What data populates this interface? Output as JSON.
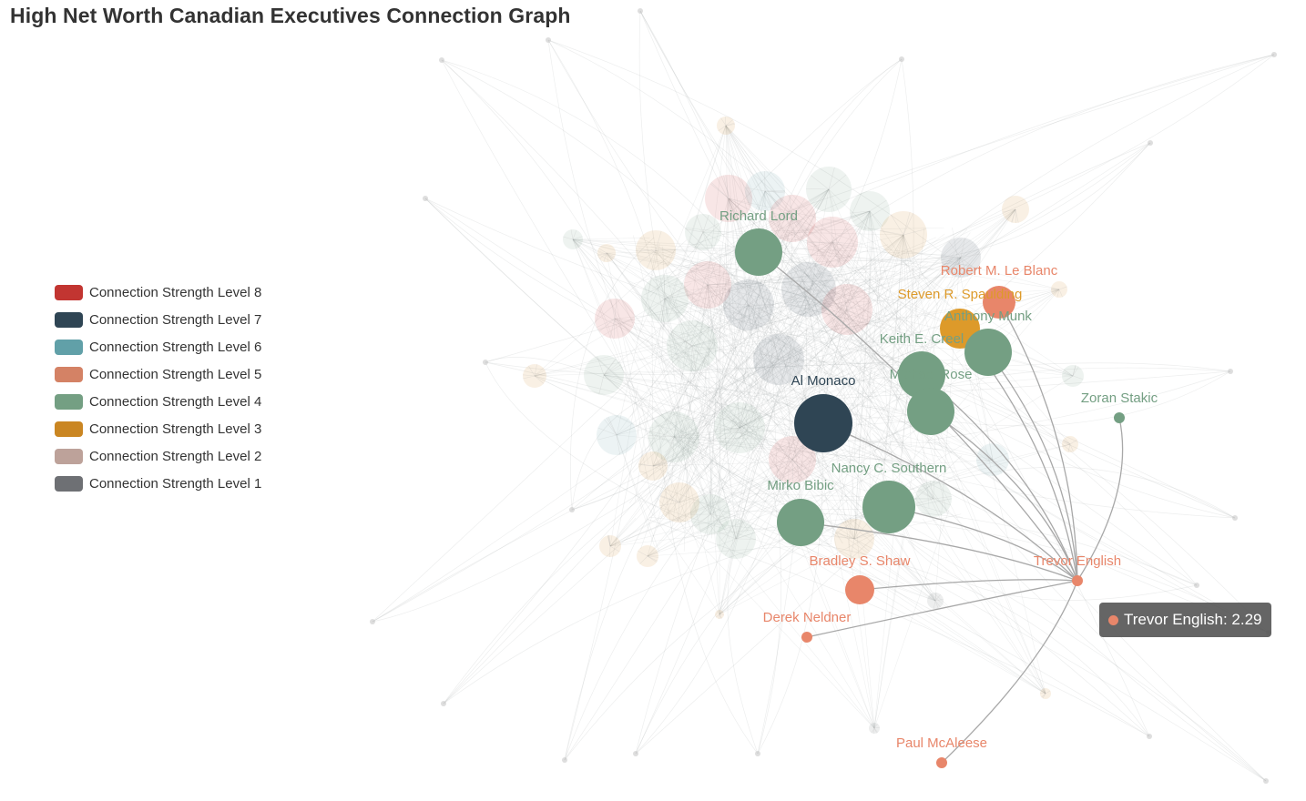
{
  "title": "High Net Worth Canadian Executives Connection Graph",
  "legend": [
    {
      "label": "Connection Strength Level 8",
      "color": "#c23531"
    },
    {
      "label": "Connection Strength Level 7",
      "color": "#2f4554"
    },
    {
      "label": "Connection Strength Level 6",
      "color": "#61a0a8"
    },
    {
      "label": "Connection Strength Level 5",
      "color": "#d48265"
    },
    {
      "label": "Connection Strength Level 4",
      "color": "#749f83"
    },
    {
      "label": "Connection Strength Level 3",
      "color": "#ca8622"
    },
    {
      "label": "Connection Strength Level 2",
      "color": "#bda29a"
    },
    {
      "label": "Connection Strength Level 1",
      "color": "#6e7074"
    }
  ],
  "tooltip": {
    "text": "Trevor English: 2.29",
    "color": "#e8866a"
  },
  "chart_data": {
    "type": "graph",
    "title": "High Net Worth Canadian Executives Connection Graph",
    "categories": [
      "Connection Strength Level 8",
      "Connection Strength Level 7",
      "Connection Strength Level 6",
      "Connection Strength Level 5",
      "Connection Strength Level 4",
      "Connection Strength Level 3",
      "Connection Strength Level 2",
      "Connection Strength Level 1"
    ],
    "highlighted_node": "Trevor English",
    "highlighted_value": 2.29,
    "labeled_nodes": [
      {
        "name": "Al Monaco",
        "category": "Connection Strength Level 7"
      },
      {
        "name": "Richard Lord",
        "category": "Connection Strength Level 4"
      },
      {
        "name": "Nancy C. Southern",
        "category": "Connection Strength Level 4"
      },
      {
        "name": "Mirko Bibic",
        "category": "Connection Strength Level 4"
      },
      {
        "name": "Robert M. Le Blanc",
        "category": "Connection Strength Level 5"
      },
      {
        "name": "Steven R. Spaulding",
        "category": "Connection Strength Level 3"
      },
      {
        "name": "Anthony Munk",
        "category": "Connection Strength Level 4"
      },
      {
        "name": "Keith E. Creel",
        "category": "Connection Strength Level 4"
      },
      {
        "name": "Michael Rose",
        "category": "Connection Strength Level 4"
      },
      {
        "name": "Zoran Stakic",
        "category": "Connection Strength Level 4"
      },
      {
        "name": "Bradley S. Shaw",
        "category": "Connection Strength Level 5"
      },
      {
        "name": "Trevor English",
        "category": "Connection Strength Level 5"
      },
      {
        "name": "Derek Neldner",
        "category": "Connection Strength Level 5"
      },
      {
        "name": "Paul McAleese",
        "category": "Connection Strength Level 5"
      }
    ]
  }
}
